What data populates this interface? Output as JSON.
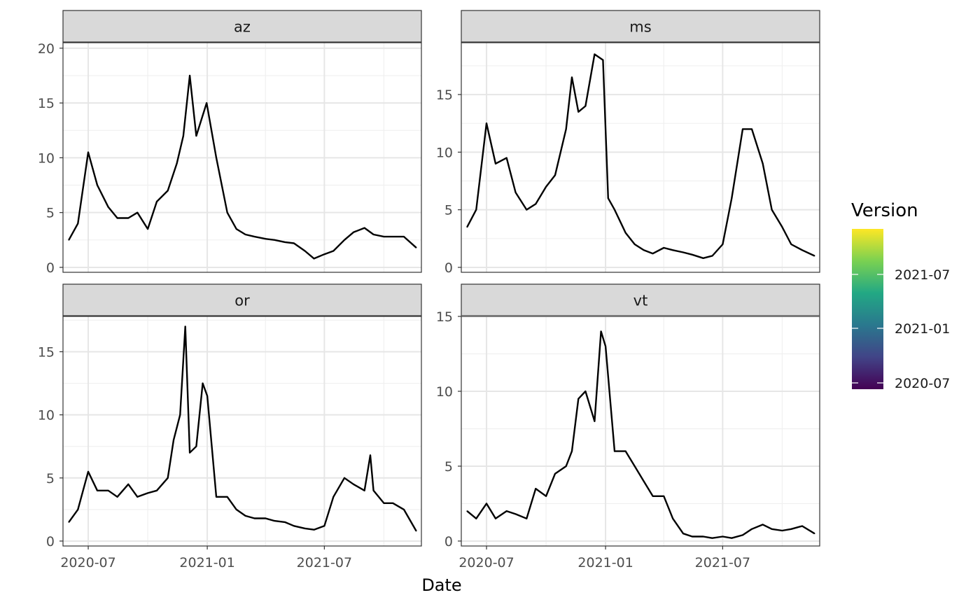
{
  "chart_data": {
    "type": "line",
    "xlabel": "Date",
    "ylabel": "",
    "x_tick_labels": [
      "2020-07",
      "2021-01",
      "2021-07"
    ],
    "x_ticks": [
      "2020-07-01",
      "2021-01-01",
      "2021-07-01"
    ],
    "xlim": [
      "2020-05-23",
      "2021-11-28"
    ],
    "grid": true,
    "legend": {
      "title": "Version",
      "type": "colorbar",
      "palette": "viridis",
      "labels": [
        "2021-07",
        "2021-01",
        "2020-07"
      ],
      "colors": [
        "#fde725",
        "#7ad151",
        "#22a884",
        "#2a788e",
        "#414487",
        "#440154"
      ],
      "placement": "right"
    },
    "final_series_color": "#000000",
    "panels": [
      {
        "strip": "az",
        "ylim": [
          0,
          20.5
        ],
        "y_ticks": [
          0,
          5,
          10,
          15,
          20
        ],
        "series": [
          {
            "x": [
              "2020-06-01",
              "2020-06-15",
              "2020-07-01",
              "2020-07-15",
              "2020-08-01",
              "2020-08-15",
              "2020-09-01",
              "2020-09-15",
              "2020-10-01",
              "2020-10-15",
              "2020-11-01",
              "2020-11-15",
              "2020-11-25",
              "2020-12-05",
              "2020-12-15",
              "2020-12-31",
              "2021-01-15",
              "2021-02-01",
              "2021-02-15",
              "2021-03-01",
              "2021-03-15",
              "2021-04-01",
              "2021-04-15",
              "2021-05-01",
              "2021-05-15",
              "2021-06-01",
              "2021-06-15",
              "2021-07-01",
              "2021-07-15",
              "2021-08-01",
              "2021-08-15",
              "2021-09-01",
              "2021-09-15",
              "2021-10-01",
              "2021-10-15",
              "2021-11-01",
              "2021-11-20"
            ],
            "values": [
              2.5,
              4,
              10.5,
              7.5,
              5.5,
              4.5,
              4.5,
              5,
              3.5,
              6,
              7,
              9.5,
              12,
              17.5,
              12,
              15,
              10,
              5,
              3.5,
              3,
              2.8,
              2.6,
              2.5,
              2.3,
              2.2,
              1.5,
              0.8,
              1.2,
              1.5,
              2.5,
              3.2,
              3.6,
              3,
              2.8,
              2.8,
              2.8,
              1.8
            ]
          }
        ]
      },
      {
        "strip": "ms",
        "ylim": [
          0,
          19.5
        ],
        "y_ticks": [
          0,
          5,
          10,
          15
        ],
        "series": [
          {
            "x": [
              "2020-06-01",
              "2020-06-15",
              "2020-07-01",
              "2020-07-15",
              "2020-08-01",
              "2020-08-15",
              "2020-09-01",
              "2020-09-15",
              "2020-10-01",
              "2020-10-15",
              "2020-11-01",
              "2020-11-10",
              "2020-11-20",
              "2020-12-01",
              "2020-12-15",
              "2020-12-28",
              "2021-01-05",
              "2021-01-15",
              "2021-02-01",
              "2021-02-15",
              "2021-03-01",
              "2021-03-15",
              "2021-04-01",
              "2021-04-15",
              "2021-05-01",
              "2021-05-15",
              "2021-06-01",
              "2021-06-15",
              "2021-07-01",
              "2021-07-15",
              "2021-08-01",
              "2021-08-15",
              "2021-09-01",
              "2021-09-15",
              "2021-10-01",
              "2021-10-15",
              "2021-11-01",
              "2021-11-20"
            ],
            "values": [
              3.5,
              5,
              12.5,
              9,
              9.5,
              6.5,
              5,
              5.5,
              7,
              8,
              12,
              16.5,
              13.5,
              14,
              18.5,
              18,
              6,
              5,
              3,
              2,
              1.5,
              1.2,
              1.7,
              1.5,
              1.3,
              1.1,
              0.8,
              1,
              2,
              6,
              12,
              12,
              9,
              5,
              3.5,
              2,
              1.5,
              1
            ]
          }
        ]
      },
      {
        "strip": "or",
        "ylim": [
          0,
          17.8
        ],
        "y_ticks": [
          0,
          5,
          10,
          15
        ],
        "series": [
          {
            "x": [
              "2020-06-01",
              "2020-06-15",
              "2020-07-01",
              "2020-07-15",
              "2020-08-01",
              "2020-08-15",
              "2020-09-01",
              "2020-09-15",
              "2020-10-01",
              "2020-10-15",
              "2020-11-01",
              "2020-11-10",
              "2020-11-20",
              "2020-11-28",
              "2020-12-05",
              "2020-12-15",
              "2020-12-25",
              "2021-01-01",
              "2021-01-15",
              "2021-02-01",
              "2021-02-15",
              "2021-03-01",
              "2021-03-15",
              "2021-04-01",
              "2021-04-15",
              "2021-05-01",
              "2021-05-15",
              "2021-06-01",
              "2021-06-15",
              "2021-07-01",
              "2021-07-15",
              "2021-08-01",
              "2021-08-15",
              "2021-09-01",
              "2021-09-10",
              "2021-09-15",
              "2021-10-01",
              "2021-10-15",
              "2021-11-01",
              "2021-11-20"
            ],
            "values": [
              1.5,
              2.5,
              5.5,
              4,
              4,
              3.5,
              4.5,
              3.5,
              3.8,
              4,
              5,
              8,
              10,
              17,
              7,
              7.5,
              12.5,
              11.5,
              3.5,
              3.5,
              2.5,
              2,
              1.8,
              1.8,
              1.6,
              1.5,
              1.2,
              1,
              0.9,
              1.2,
              3.5,
              5,
              4.5,
              4,
              6.8,
              4,
              3,
              3,
              2.5,
              0.8
            ]
          }
        ]
      },
      {
        "strip": "vt",
        "ylim": [
          0,
          15
        ],
        "y_ticks": [
          0,
          5,
          10,
          15
        ],
        "series": [
          {
            "x": [
              "2020-06-01",
              "2020-06-15",
              "2020-07-01",
              "2020-07-15",
              "2020-08-01",
              "2020-08-15",
              "2020-09-01",
              "2020-09-15",
              "2020-10-01",
              "2020-10-15",
              "2020-11-01",
              "2020-11-10",
              "2020-11-20",
              "2020-12-01",
              "2020-12-15",
              "2020-12-25",
              "2021-01-01",
              "2021-01-15",
              "2021-02-01",
              "2021-02-15",
              "2021-03-01",
              "2021-03-15",
              "2021-04-01",
              "2021-04-15",
              "2021-05-01",
              "2021-05-15",
              "2021-06-01",
              "2021-06-15",
              "2021-07-01",
              "2021-07-15",
              "2021-08-01",
              "2021-08-15",
              "2021-09-01",
              "2021-09-15",
              "2021-10-01",
              "2021-10-15",
              "2021-11-01",
              "2021-11-20"
            ],
            "values": [
              2,
              1.5,
              2.5,
              1.5,
              2,
              1.8,
              1.5,
              3.5,
              3,
              4.5,
              5,
              6,
              9.5,
              10,
              8,
              14,
              13,
              6,
              6,
              5,
              4,
              3,
              3,
              1.5,
              0.5,
              0.3,
              0.3,
              0.2,
              0.3,
              0.2,
              0.4,
              0.8,
              1.1,
              0.8,
              0.7,
              0.8,
              1,
              0.5
            ]
          }
        ]
      }
    ]
  }
}
